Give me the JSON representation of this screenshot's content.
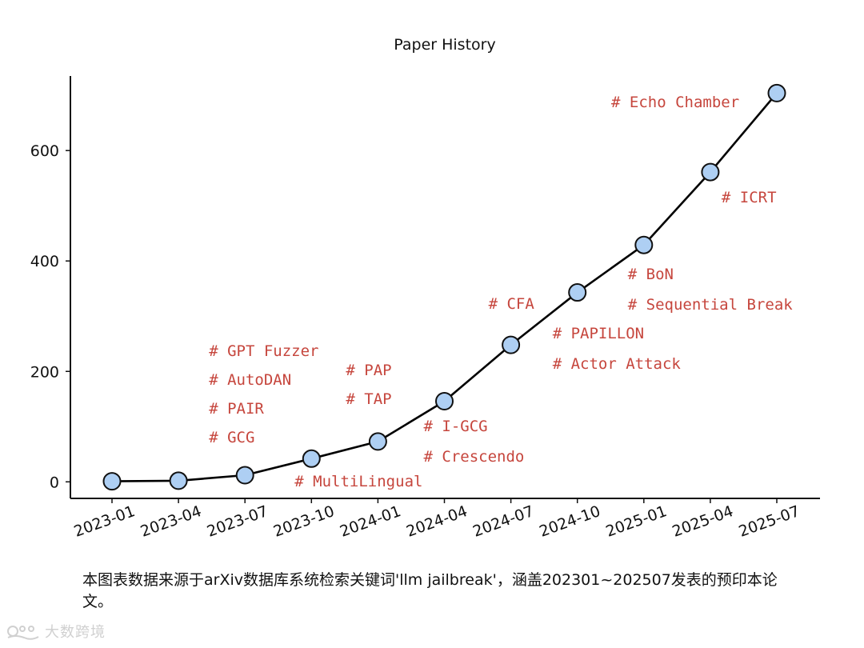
{
  "chart_data": {
    "type": "line",
    "title": "Paper History",
    "xlabel": "",
    "ylabel": "",
    "x": [
      "2023-01",
      "2023-04",
      "2023-07",
      "2023-10",
      "2024-01",
      "2024-04",
      "2024-07",
      "2024-10",
      "2025-01",
      "2025-04",
      "2025-07"
    ],
    "y_ticks": [
      0,
      200,
      400,
      600
    ],
    "ylim": [
      -30,
      735
    ],
    "grid": false,
    "series": [
      {
        "values": [
          1,
          2,
          12,
          42,
          73,
          146,
          248,
          343,
          429,
          561,
          704
        ],
        "color": "#000000",
        "marker_color": "#aecff3"
      }
    ],
    "annotations": [
      {
        "x": "2023-07",
        "lines": [
          "# GPT Fuzzer",
          "# AutoDAN",
          "# PAIR",
          "# GCG"
        ]
      },
      {
        "x": "2023-10",
        "lines": [
          "# MultiLingual"
        ]
      },
      {
        "x": "2024-01",
        "lines": [
          "# PAP",
          "# TAP"
        ]
      },
      {
        "x": "2024-04",
        "lines": [
          "# I-GCG",
          "# Crescendo"
        ]
      },
      {
        "x": "2024-07",
        "lines": [
          "# CFA"
        ]
      },
      {
        "x": "2024-10",
        "lines": [
          "# PAPILLON",
          "# Actor Attack"
        ]
      },
      {
        "x": "2025-01",
        "lines": [
          "# BoN",
          "# Sequential Break"
        ]
      },
      {
        "x": "2025-04",
        "lines": [
          "# ICRT"
        ]
      },
      {
        "x": "2025-07",
        "lines": [
          "# Echo Chamber"
        ]
      }
    ],
    "annotation_color": "#c6463d"
  },
  "caption": {
    "text": "本图表数据来源于arXiv数据库系统检索关键词'llm jailbreak'，涵盖202301~202507发表的预印本论文。"
  },
  "watermark": {
    "text": "大数跨境"
  }
}
